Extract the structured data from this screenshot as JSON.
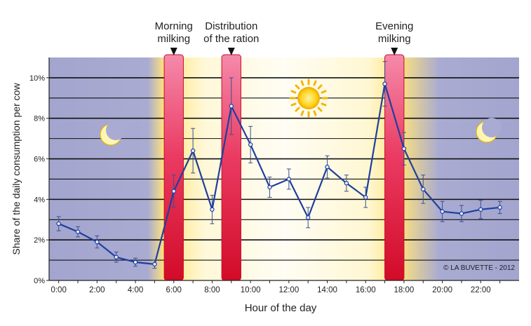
{
  "chart_data": {
    "type": "line",
    "title": "",
    "xlabel": "Hour of the day",
    "ylabel": "Share of the daily consumption per cow",
    "xlim": [
      -0.5,
      24.0
    ],
    "ylim": [
      0,
      11
    ],
    "x_ticks": [
      0,
      2,
      4,
      6,
      8,
      10,
      12,
      14,
      16,
      18,
      20,
      22
    ],
    "x_tick_labels": [
      "0:00",
      "2:00",
      "4:00",
      "6:00",
      "8:00",
      "10:00",
      "12:00",
      "14:00",
      "16:00",
      "18:00",
      "20:00",
      "22:00"
    ],
    "y_ticks": [
      0,
      2,
      4,
      6,
      8,
      10
    ],
    "y_tick_labels": [
      "0%",
      "2%",
      "4%",
      "6%",
      "8%",
      "10%"
    ],
    "grid": "horizontal lines every 1%",
    "series": [
      {
        "name": "",
        "color": "#1f3f9e",
        "x": [
          0,
          1,
          2,
          3,
          4,
          5,
          6,
          7,
          8,
          9,
          10,
          11,
          12,
          13,
          14,
          15,
          16,
          17,
          18,
          19,
          20,
          21,
          22,
          23
        ],
        "values": [
          2.8,
          2.4,
          1.9,
          1.15,
          0.9,
          0.8,
          4.4,
          6.4,
          3.5,
          8.6,
          6.7,
          4.6,
          5.0,
          3.1,
          5.6,
          4.8,
          4.1,
          9.7,
          6.5,
          4.5,
          3.4,
          3.3,
          3.5,
          3.6
        ],
        "error": [
          0.35,
          0.25,
          0.3,
          0.25,
          0.2,
          0.2,
          0.8,
          1.1,
          0.7,
          1.4,
          0.9,
          0.5,
          0.5,
          0.5,
          0.55,
          0.4,
          0.5,
          1.1,
          0.8,
          0.7,
          0.5,
          0.4,
          0.45,
          0.3
        ]
      }
    ],
    "periods": [
      {
        "label_lines": [
          "Morning",
          "milking"
        ],
        "start": 5.5,
        "end": 6.5
      },
      {
        "label_lines": [
          "Distribution",
          "of the ration"
        ],
        "start": 8.5,
        "end": 9.5
      },
      {
        "label_lines": [
          "Evening",
          "milking"
        ],
        "start": 17.0,
        "end": 18.0
      }
    ],
    "copyright": "© LA BUVETTE - 2012",
    "colors": {
      "night": "#a9abd2",
      "day": "#fffdf4",
      "dawn": "#ffe88a",
      "period_top": "#f37ca0",
      "period_bottom": "#d40d2d",
      "line": "#1f3f9e",
      "grid": "#111111"
    },
    "icons": [
      "moon-icon",
      "sun-icon",
      "moon-icon"
    ]
  }
}
